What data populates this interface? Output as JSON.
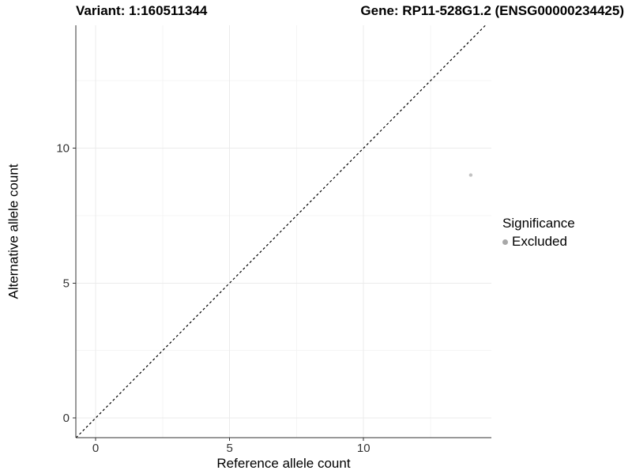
{
  "header": {
    "left_title": "Variant: 1:160511344",
    "right_title": "Gene: RP11-528G1.2 (ENSG00000234425)"
  },
  "chart_data": {
    "type": "scatter",
    "title_left": "Variant: 1:160511344",
    "title_right": "Gene: RP11-528G1.2 (ENSG00000234425)",
    "xlabel": "Reference allele count",
    "ylabel": "Alternative allele count",
    "xlim": [
      -0.74,
      14.77
    ],
    "ylim": [
      -0.73,
      14.55
    ],
    "x_major_ticks": [
      0,
      5,
      10
    ],
    "y_major_ticks": [
      0,
      5,
      10
    ],
    "x_minor_ticks": [
      2.5,
      7.5,
      12.5
    ],
    "y_minor_ticks": [
      2.5,
      7.5,
      12.5
    ],
    "grid": "major and minor gridlines on white panel",
    "points": [
      {
        "x": 14,
        "y": 9,
        "series": "Excluded"
      }
    ],
    "reference_line": {
      "kind": "identity y=x",
      "style": "dashed",
      "color": "#000000"
    },
    "series": [
      {
        "name": "Excluded",
        "color": "#c2c2c2"
      }
    ],
    "legend": {
      "title": "Significance",
      "position": "right",
      "items": [
        {
          "label": "Excluded",
          "color": "#a8a8a8"
        }
      ]
    },
    "colors": {
      "major_grid": "#ebebeb",
      "minor_grid": "#f4f4f4",
      "axis_line": "#333333",
      "tick_mark": "#333333",
      "tick_label": "#333333",
      "point_fill": "#c2c2c2"
    }
  }
}
